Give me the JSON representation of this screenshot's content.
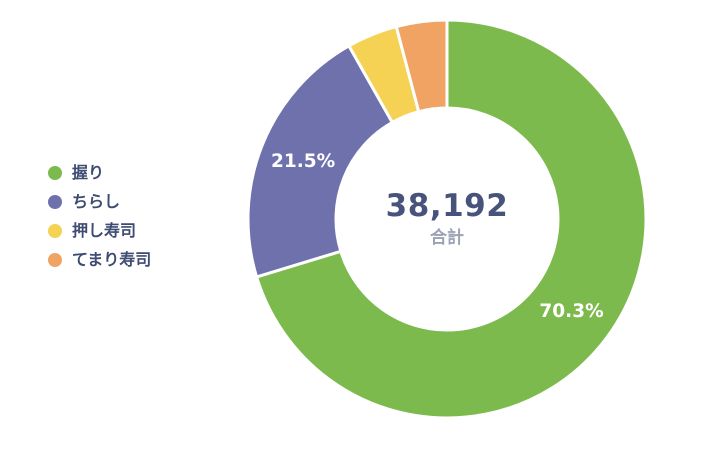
{
  "chart_data": {
    "type": "donut",
    "title": "",
    "total_value": "38,192",
    "center": {
      "value": "38,192",
      "label": "合計"
    },
    "legend_position": "left",
    "label_format": "percent",
    "background_color": "#ffffff",
    "gap_color": "#ffffff",
    "series": [
      {
        "name": "握り",
        "percent": 70.3,
        "label": "70.3%",
        "color": "#7DBA4D",
        "show_label": true
      },
      {
        "name": "ちらし",
        "percent": 21.5,
        "label": "21.5%",
        "color": "#6E71AC",
        "show_label": true
      },
      {
        "name": "押し寿司",
        "percent": 4.1,
        "label": "4.1%",
        "color": "#F6D254",
        "show_label": false
      },
      {
        "name": "てまり寿司",
        "percent": 4.1,
        "label": "4.1%",
        "color": "#F0A363",
        "show_label": false
      }
    ]
  }
}
